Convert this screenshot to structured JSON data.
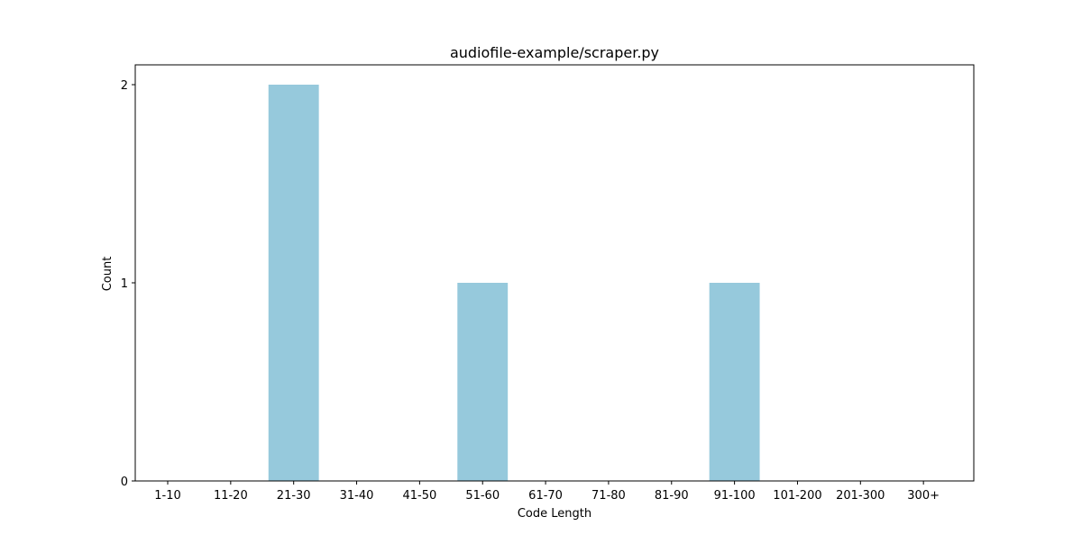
{
  "chart_data": {
    "type": "bar",
    "title": "audiofile-example/scraper.py",
    "xlabel": "Code Length",
    "ylabel": "Count",
    "categories": [
      "1-10",
      "11-20",
      "21-30",
      "31-40",
      "41-50",
      "51-60",
      "61-70",
      "71-80",
      "81-90",
      "91-100",
      "101-200",
      "201-300",
      "300+"
    ],
    "values": [
      0,
      0,
      2,
      0,
      0,
      1,
      0,
      0,
      0,
      1,
      0,
      0,
      0
    ],
    "yticks": [
      0,
      1,
      2
    ],
    "ylim": [
      0,
      2.1
    ],
    "grid": false,
    "legend": "none",
    "bar_color": "#96c9dc"
  }
}
